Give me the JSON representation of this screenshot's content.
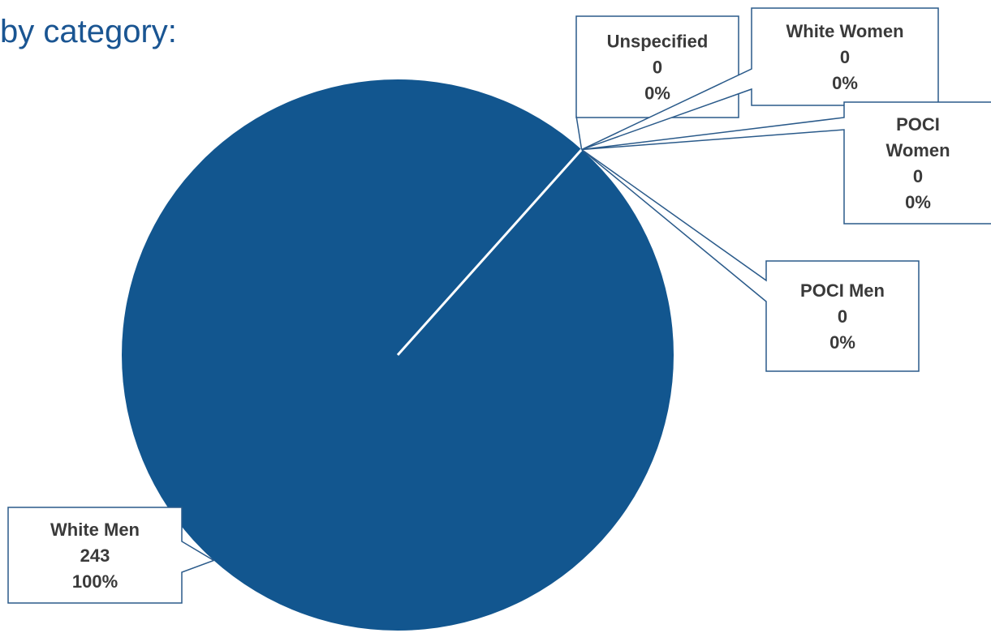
{
  "heading": "by category:",
  "chart_data": {
    "type": "pie",
    "title": "",
    "start_angle_deg": 41.8,
    "slices": [
      {
        "label": "Unspecified",
        "value": 0,
        "percent": "0%"
      },
      {
        "label": "White Women",
        "value": 0,
        "percent": "0%"
      },
      {
        "label": "POCI Women",
        "value": 0,
        "percent": "0%"
      },
      {
        "label": "POCI Men",
        "value": 0,
        "percent": "0%"
      },
      {
        "label": "White Men",
        "value": 243,
        "percent": "100%"
      }
    ],
    "colors": {
      "slice": "#12568f",
      "separator": "#ffffff",
      "callout_border": "#2a5a8a",
      "label_text": "#3a3a3a"
    }
  }
}
